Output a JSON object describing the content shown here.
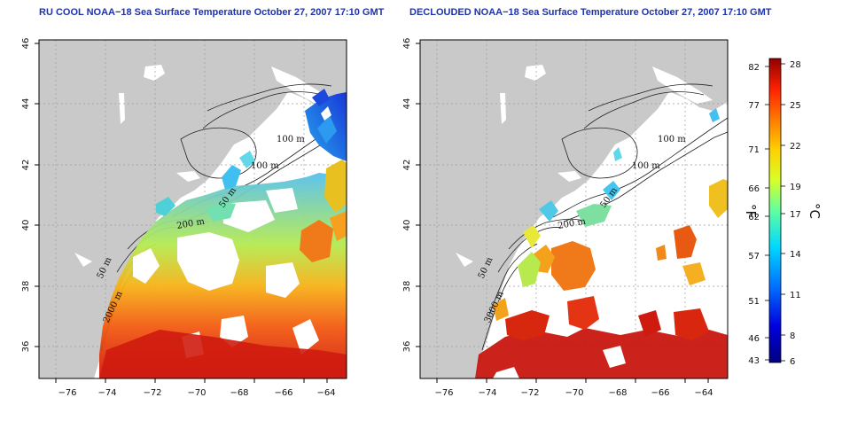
{
  "panels": [
    {
      "id": "left",
      "title": "RU COOL NOAA−18 Sea Surface Temperature October 27, 2007 17:10 GMT",
      "contour_labels": [
        "100 m",
        "100 m",
        "50 m",
        "200 m",
        "50 m",
        "2000 m"
      ]
    },
    {
      "id": "right",
      "title": "DECLOUDED NOAA−18 Sea Surface Temperature October 27, 2007 17:10 GMT",
      "contour_labels": [
        "100 m",
        "100 m",
        "50 m",
        "200 m",
        "50 m",
        "3000 m"
      ]
    }
  ],
  "axes": {
    "x_ticks": [
      "−76",
      "−74",
      "−72",
      "−70",
      "−68",
      "−66",
      "−64"
    ],
    "y_ticks": [
      "36",
      "38",
      "40",
      "42",
      "44",
      "46"
    ]
  },
  "colorbar": {
    "fahrenheit_label": "°F",
    "celsius_label": "°C",
    "fahrenheit_ticks": [
      "82",
      "77",
      "71",
      "66",
      "62",
      "57",
      "51",
      "46",
      "43"
    ],
    "celsius_ticks": [
      "28",
      "25",
      "22",
      "19",
      "17",
      "14",
      "11",
      "8",
      "6"
    ]
  },
  "colors": {
    "land": "#c9c9c9",
    "title": "#1f33a8",
    "warm": "#c8170f",
    "cool": "#1741d8"
  }
}
